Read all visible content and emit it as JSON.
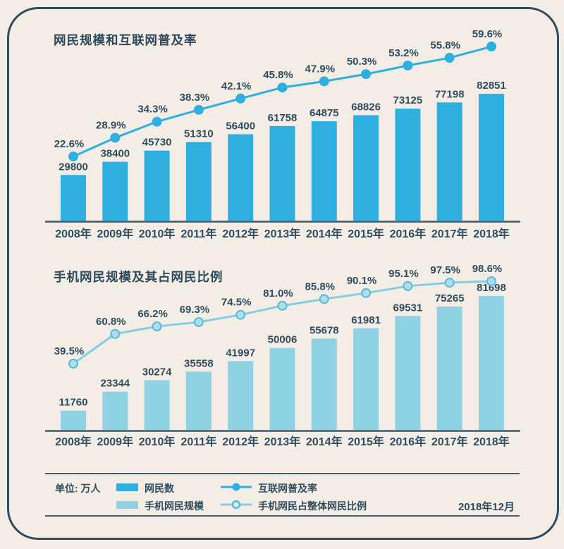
{
  "style": {
    "background": "#f4ede5",
    "frame_border": "#2e4d5f",
    "text": "#2f4d60",
    "axis": "#3d5a6b"
  },
  "chart_data": [
    {
      "type": "bar+line",
      "title": "网民规模和互联网普及率",
      "unit": "万人",
      "categories": [
        "2008年",
        "2009年",
        "2010年",
        "2011年",
        "2012年",
        "2013年",
        "2014年",
        "2015年",
        "2016年",
        "2017年",
        "2018年"
      ],
      "series": [
        {
          "name": "网民数",
          "type": "bar",
          "color": "#2fafe0",
          "values": [
            29800,
            38400,
            45730,
            51310,
            56400,
            61758,
            64875,
            68826,
            73125,
            77198,
            82851
          ]
        },
        {
          "name": "互联网普及率",
          "type": "line",
          "color": "#2fafe0",
          "marker_fill": "#2fafe0",
          "marker_stroke": "#2fafe0",
          "values": [
            22.6,
            28.9,
            34.3,
            38.3,
            42.1,
            45.8,
            47.9,
            50.3,
            53.2,
            55.8,
            59.6
          ]
        }
      ]
    },
    {
      "type": "bar+line",
      "title": "手机网民规模及其占网民比例",
      "unit": "万人",
      "categories": [
        "2008年",
        "2009年",
        "2010年",
        "2011年",
        "2012年",
        "2013年",
        "2014年",
        "2015年",
        "2016年",
        "2017年",
        "2018年"
      ],
      "series": [
        {
          "name": "手机网民规模",
          "type": "bar",
          "color": "#8ed2e3",
          "values": [
            11760,
            23344,
            30274,
            35558,
            41997,
            50006,
            55678,
            61981,
            69531,
            75265,
            81698
          ]
        },
        {
          "name": "手机网民占整体网民比例",
          "type": "line",
          "color": "#84cee2",
          "marker_fill": "#aedded",
          "marker_stroke": "#58bcd6",
          "values": [
            39.5,
            60.8,
            66.2,
            69.3,
            74.5,
            81.0,
            85.8,
            90.1,
            95.1,
            97.5,
            98.6
          ]
        }
      ]
    }
  ],
  "legend": {
    "unit_label": "单位: 万人",
    "footer_date": "2018年12月"
  }
}
